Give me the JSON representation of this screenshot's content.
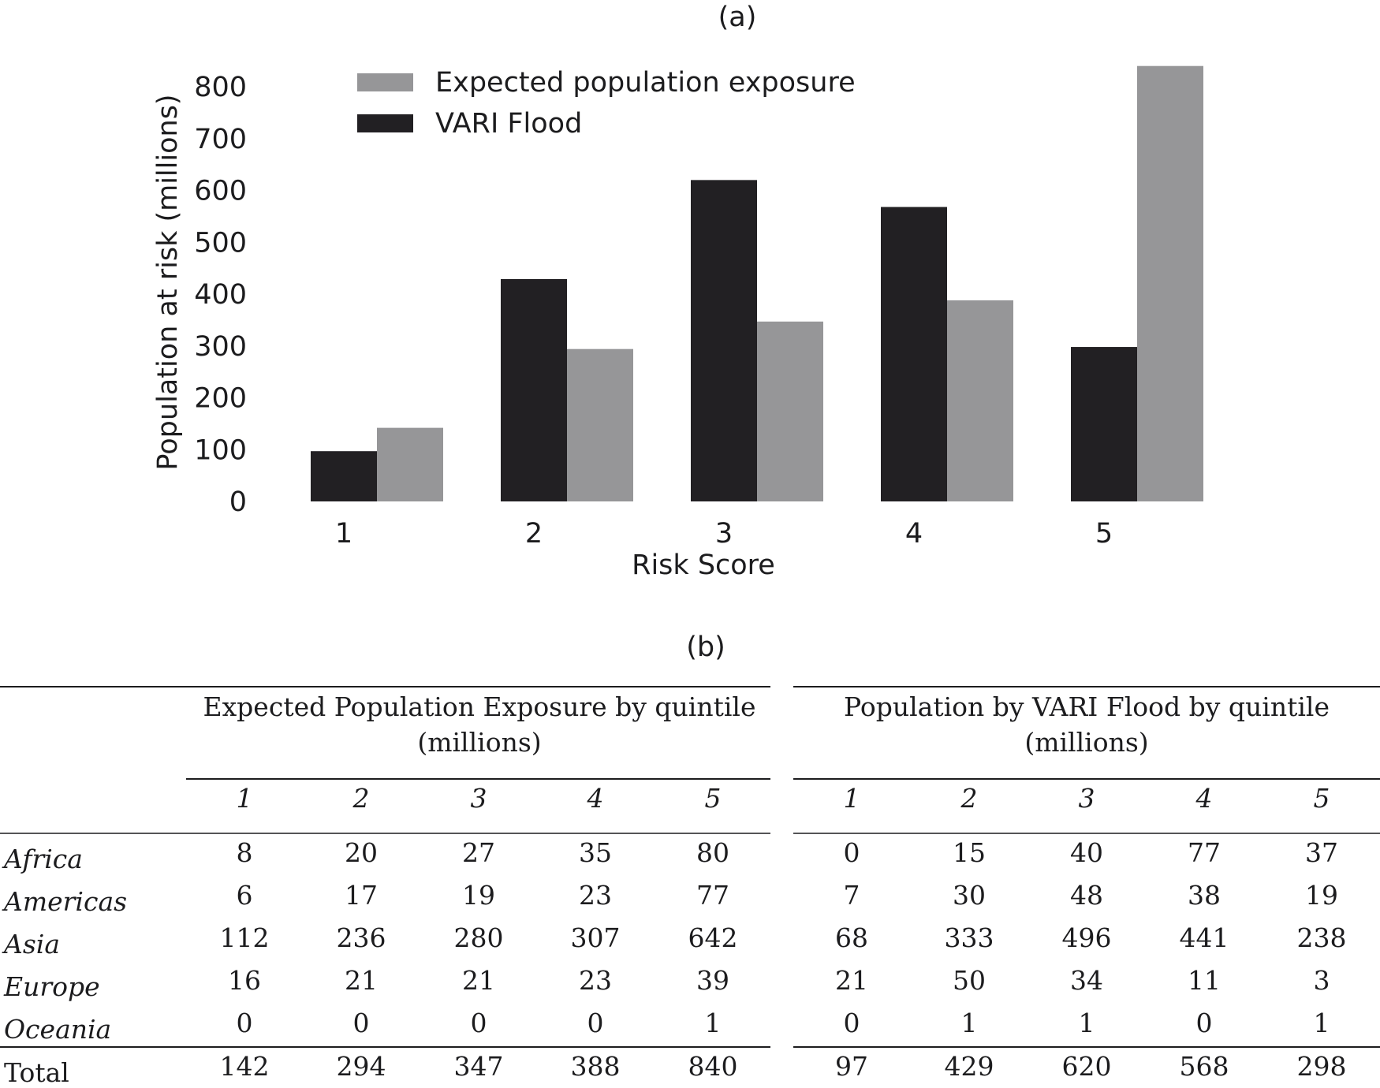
{
  "panel_a_label": "(a)",
  "panel_b_label": "(b)",
  "colors": {
    "expected": "#969698",
    "vari": "#222023",
    "text": "#1c1c1e"
  },
  "chart_data": {
    "type": "bar",
    "title": "",
    "xlabel": "Risk Score",
    "ylabel": "Population at risk (millions)",
    "categories": [
      "1",
      "2",
      "3",
      "4",
      "5"
    ],
    "ylim": [
      0,
      850
    ],
    "yticks": [
      0,
      100,
      200,
      300,
      400,
      500,
      600,
      700,
      800
    ],
    "legend_position": "top-center",
    "series": [
      {
        "name": "VARI Flood",
        "color": "#222023",
        "values": [
          97,
          429,
          620,
          568,
          298
        ]
      },
      {
        "name": "Expected population exposure",
        "color": "#969698",
        "values": [
          142,
          294,
          347,
          388,
          840
        ]
      }
    ],
    "legend_order": [
      "Expected population exposure",
      "VARI Flood"
    ]
  },
  "table": {
    "group_headers": [
      {
        "line1": "Expected Population Exposure by quintile",
        "line2": "(millions)"
      },
      {
        "line1": "Population by VARI Flood by quintile",
        "line2": "(millions)"
      }
    ],
    "quintiles": [
      "1",
      "2",
      "3",
      "4",
      "5"
    ],
    "rows": [
      {
        "region": "Africa",
        "epe": [
          "8",
          "20",
          "27",
          "35",
          "80"
        ],
        "vari": [
          "0",
          "15",
          "40",
          "77",
          "37"
        ]
      },
      {
        "region": "Americas",
        "epe": [
          "6",
          "17",
          "19",
          "23",
          "77"
        ],
        "vari": [
          "7",
          "30",
          "48",
          "38",
          "19"
        ]
      },
      {
        "region": "Asia",
        "epe": [
          "112",
          "236",
          "280",
          "307",
          "642"
        ],
        "vari": [
          "68",
          "333",
          "496",
          "441",
          "238"
        ]
      },
      {
        "region": "Europe",
        "epe": [
          "16",
          "21",
          "21",
          "23",
          "39"
        ],
        "vari": [
          "21",
          "50",
          "34",
          "11",
          "3"
        ]
      },
      {
        "region": "Oceania",
        "epe": [
          "0",
          "0",
          "0",
          "0",
          "1"
        ],
        "vari": [
          "0",
          "1",
          "1",
          "0",
          "1"
        ]
      }
    ],
    "total": {
      "region": "Total",
      "epe": [
        "142",
        "294",
        "347",
        "388",
        "840"
      ],
      "vari": [
        "97",
        "429",
        "620",
        "568",
        "298"
      ]
    }
  }
}
